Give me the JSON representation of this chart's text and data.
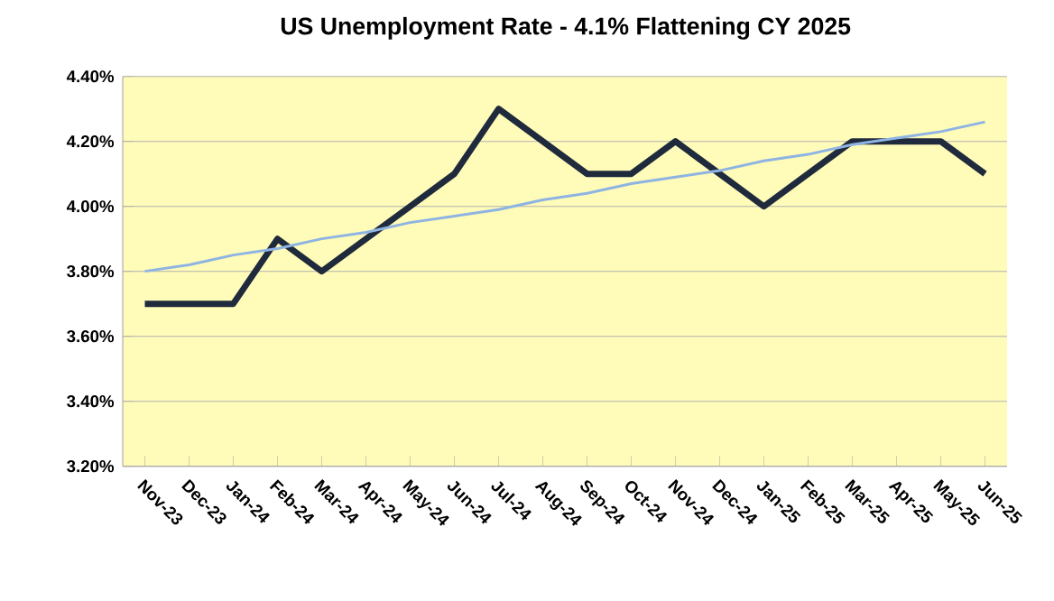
{
  "chart_data": {
    "type": "line",
    "title": "US Unemployment Rate - 4.1% Flattening CY 2025",
    "categories": [
      "Nov-23",
      "Dec-23",
      "Jan-24",
      "Feb-24",
      "Mar-24",
      "Apr-24",
      "May-24",
      "Jun-24",
      "Jul-24",
      "Aug-24",
      "Sep-24",
      "Oct-24",
      "Nov-24",
      "Dec-24",
      "Jan-25",
      "Feb-25",
      "Mar-25",
      "Apr-25",
      "May-25",
      "Jun-25"
    ],
    "series": [
      {
        "color": "#1f2a3c",
        "values": [
          3.7,
          3.7,
          3.7,
          3.9,
          3.8,
          3.9,
          4.0,
          4.1,
          4.3,
          4.2,
          4.1,
          4.1,
          4.2,
          4.1,
          4.0,
          4.1,
          4.2,
          4.2,
          4.2,
          4.1
        ]
      },
      {
        "type": "line",
        "color": "#8eb4e3",
        "values": [
          3.8,
          3.82,
          3.85,
          3.87,
          3.9,
          3.92,
          3.95,
          3.97,
          3.99,
          4.02,
          4.04,
          4.07,
          4.09,
          4.11,
          4.14,
          4.16,
          4.19,
          4.21,
          4.23,
          4.26
        ]
      }
    ],
    "ylim": [
      3.2,
      4.4
    ],
    "yticks": [
      {
        "value": 3.2,
        "label": "3.20%"
      },
      {
        "value": 3.4,
        "label": "3.40%"
      },
      {
        "value": 3.6,
        "label": "3.60%"
      },
      {
        "value": 3.8,
        "label": "3.80%"
      },
      {
        "value": 4.0,
        "label": "4.00%"
      },
      {
        "value": 4.2,
        "label": "4.20%"
      },
      {
        "value": 4.4,
        "label": "4.40%"
      }
    ],
    "grid": "y",
    "marker": "none",
    "line_style": "solid"
  }
}
